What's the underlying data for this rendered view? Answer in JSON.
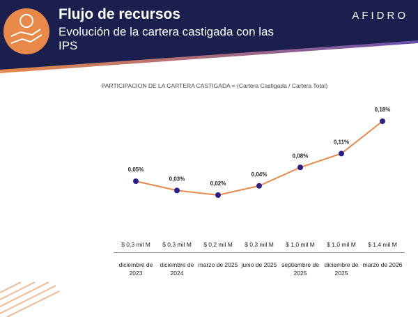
{
  "header": {
    "title": "Flujo de recursos",
    "subtitle": "Evolución de la cartera castigada con las IPS",
    "logo": "AFIDRO"
  },
  "chart_data": {
    "type": "line",
    "title": "PARTICIPACION DE LA CARTERA CASTIGADA = (Cartera Castigada / Cartera Total)",
    "categories": [
      "diciembre de 2023",
      "diciembre de 2024",
      "marzo de 2025",
      "junio de 2025",
      "septiembre de 2025",
      "diciembre de 2025",
      "marzo de 2026"
    ],
    "series": [
      {
        "color": "#e8894a",
        "marker_color": "#2b1e8c",
        "values": [
          0.05,
          0.03,
          0.02,
          0.04,
          0.08,
          0.11,
          0.18
        ],
        "value_labels": [
          "0,05%",
          "0,03%",
          "0,02%",
          "0,04%",
          "0,08%",
          "0,11%",
          "0,18%"
        ]
      }
    ],
    "amount_labels": [
      "$ 0,3 mil M",
      "$ 0,3 mil M",
      "$ 0,2 mil M",
      "$ 0,3 mil M",
      "$ 1,0 mil M",
      "$ 1,0 mil M",
      "$ 1,4 mil M"
    ]
  }
}
